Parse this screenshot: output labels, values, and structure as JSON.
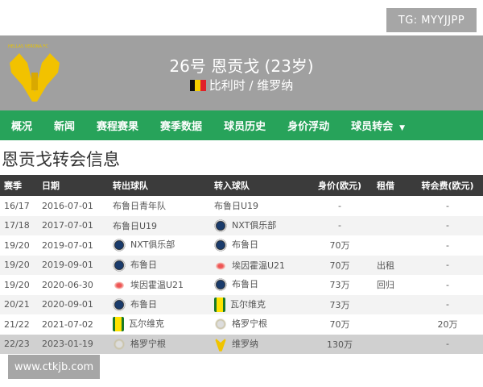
{
  "watermarks": {
    "top": "TG: MYYJJPP",
    "bottom": "www.ctkjb.com"
  },
  "header": {
    "logo_text": "HELLAS VERONA FC",
    "title": "26号 恩贡戈 (23岁)",
    "subtitle": "比利时 / 维罗纳",
    "flag": "belgium-flag"
  },
  "nav": {
    "items": [
      "概况",
      "新闻",
      "赛程赛果",
      "赛季数据",
      "球员历史",
      "身价浮动",
      "球员转会"
    ]
  },
  "page_title": "恩贡戈转会信息",
  "table": {
    "headers": [
      "赛季",
      "日期",
      "转出球队",
      "转入球队",
      "身价(欧元)",
      "租借",
      "转会费(欧元)"
    ],
    "rows": [
      [
        "16/17",
        "2016-07-01",
        "布鲁日青年队",
        "布鲁日U19",
        "-",
        "",
        "-"
      ],
      [
        "17/18",
        "2017-07-01",
        "布鲁日U19",
        "NXT俱乐部",
        "-",
        "",
        "-"
      ],
      [
        "19/20",
        "2019-07-01",
        "NXT俱乐部",
        "布鲁日",
        "70万",
        "",
        "-"
      ],
      [
        "19/20",
        "2019-09-01",
        "布鲁日",
        "埃因霍温U21",
        "70万",
        "出租",
        "-"
      ],
      [
        "19/20",
        "2020-06-30",
        "埃因霍温U21",
        "布鲁日",
        "73万",
        "回归",
        "-"
      ],
      [
        "20/21",
        "2020-09-01",
        "布鲁日",
        "瓦尔维克",
        "73万",
        "",
        "-"
      ],
      [
        "21/22",
        "2021-07-02",
        "瓦尔维克",
        "格罗宁根",
        "70万",
        "",
        "20万"
      ],
      [
        "22/23",
        "2023-01-19",
        "格罗宁根",
        "维罗纳",
        "130万",
        "",
        "-"
      ]
    ],
    "icons": [
      [
        "",
        ""
      ],
      [
        "",
        "brugge"
      ],
      [
        "brugge",
        "brugge"
      ],
      [
        "brugge",
        "psv"
      ],
      [
        "psv",
        "brugge"
      ],
      [
        "brugge",
        "waas"
      ],
      [
        "waas",
        "gron"
      ],
      [
        "gron",
        "ver"
      ]
    ]
  }
}
